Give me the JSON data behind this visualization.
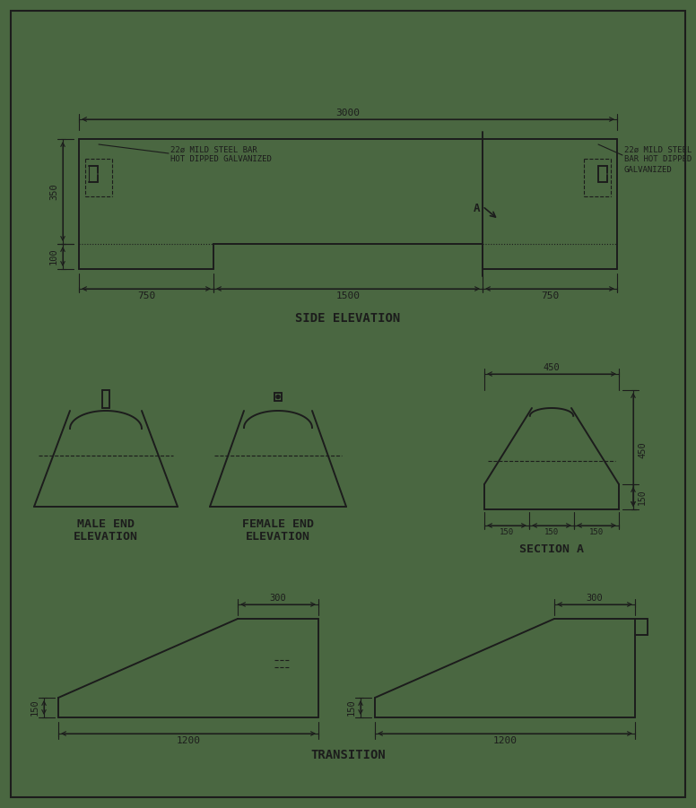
{
  "bg_color": "#4a6741",
  "line_color": "#1c1c1c",
  "fig_width": 7.76,
  "fig_height": 9.01,
  "dpi": 100,
  "border": [
    12,
    12,
    752,
    877
  ]
}
